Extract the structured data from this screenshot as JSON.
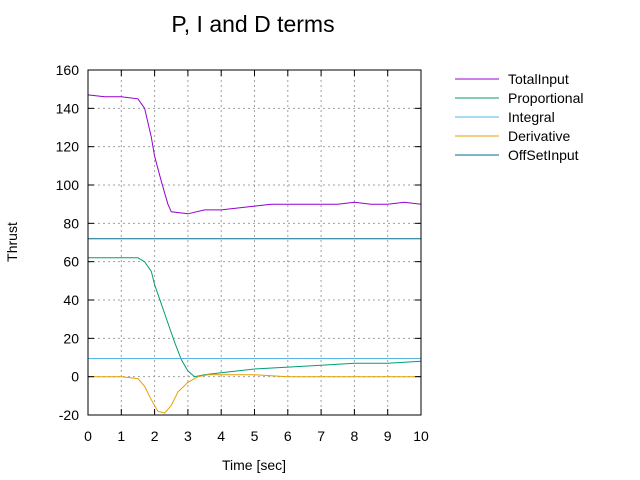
{
  "chart_data": {
    "type": "line",
    "title": "P, I and D terms",
    "xlabel": "Time [sec]",
    "ylabel": "Thrust",
    "xlim": [
      0,
      10
    ],
    "ylim": [
      -20,
      160
    ],
    "xticks": [
      0,
      1,
      2,
      3,
      4,
      5,
      6,
      7,
      8,
      9,
      10
    ],
    "yticks": [
      -20,
      0,
      20,
      40,
      60,
      80,
      100,
      120,
      140,
      160
    ],
    "grid": true,
    "legend_position": "outside-right-top",
    "series": [
      {
        "name": "TotalInput",
        "color": "#9400d3",
        "x": [
          0,
          0.5,
          1.0,
          1.5,
          1.7,
          1.9,
          2.0,
          2.2,
          2.4,
          2.5,
          3.0,
          3.5,
          4.0,
          4.5,
          5.0,
          5.5,
          6.0,
          6.5,
          7.0,
          7.5,
          8.0,
          8.5,
          9.0,
          9.5,
          10.0
        ],
        "values": [
          147,
          146,
          146,
          145,
          140,
          125,
          115,
          102,
          90,
          86,
          85,
          87,
          87,
          88,
          89,
          90,
          90,
          90,
          90,
          90,
          91,
          90,
          90,
          91,
          90
        ]
      },
      {
        "name": "Proportional",
        "color": "#009e73",
        "x": [
          0,
          0.5,
          1.0,
          1.5,
          1.7,
          1.9,
          2.0,
          2.2,
          2.4,
          2.6,
          2.8,
          3.0,
          3.2,
          3.5,
          4.0,
          5.0,
          6.0,
          7.0,
          8.0,
          9.0,
          10.0
        ],
        "values": [
          62,
          62,
          62,
          62,
          60,
          55,
          48,
          38,
          28,
          18,
          9,
          3,
          0,
          1,
          2,
          4,
          5,
          6,
          7,
          7,
          8
        ]
      },
      {
        "name": "Integral",
        "color": "#56b4e9",
        "x": [
          0,
          10
        ],
        "values": [
          9.5,
          9.5
        ]
      },
      {
        "name": "Derivative",
        "color": "#e69f00",
        "x": [
          0,
          0.5,
          1.0,
          1.5,
          1.7,
          1.9,
          2.1,
          2.3,
          2.5,
          2.7,
          3.0,
          3.3,
          3.6,
          4.0,
          4.5,
          5.0,
          6.0,
          7.0,
          8.0,
          9.0,
          10.0
        ],
        "values": [
          0,
          0,
          0,
          -1,
          -5,
          -12,
          -18,
          -19,
          -15,
          -8,
          -3,
          0,
          1,
          1,
          1,
          1,
          0,
          0,
          0,
          0,
          0
        ]
      },
      {
        "name": "OffSetInput",
        "color": "#006b8f",
        "x": [
          0,
          10
        ],
        "values": [
          72,
          72
        ]
      }
    ]
  }
}
